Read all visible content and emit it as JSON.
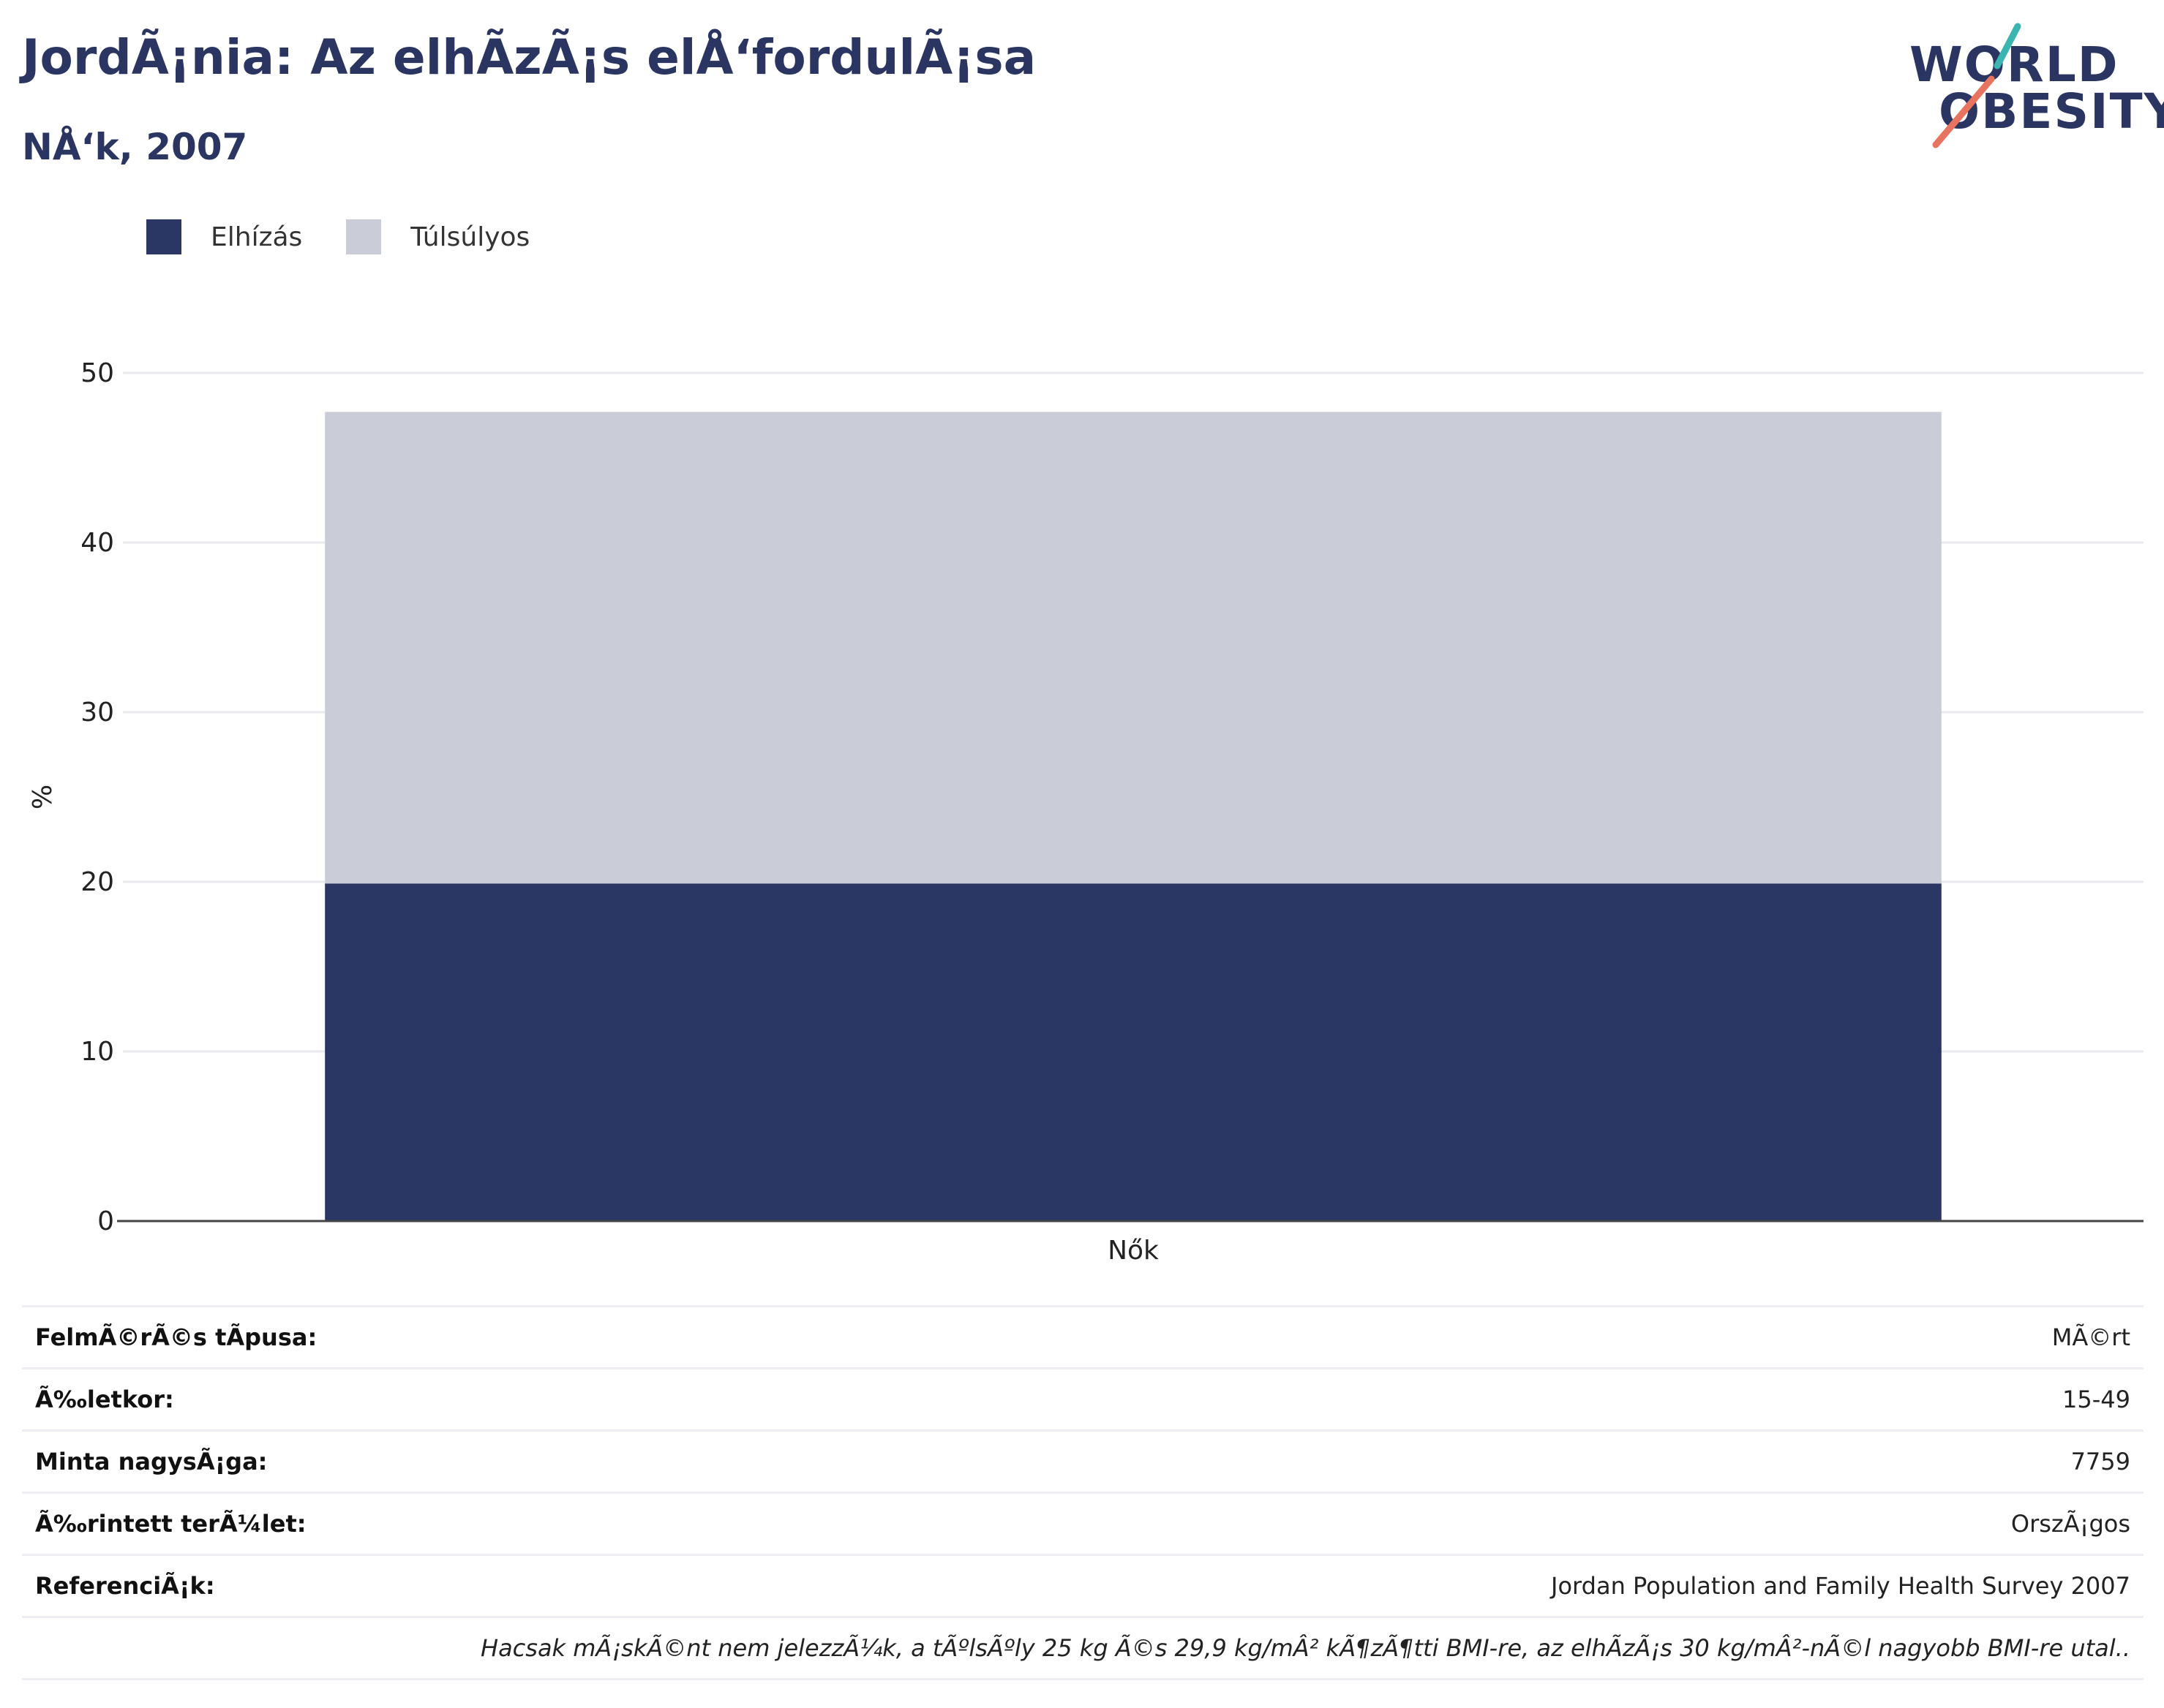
{
  "header": {
    "title": "JordÃ¡nia: Az elhÃ­zÃ¡s elÅ‘fordulÃ¡sa",
    "subtitle": "NÅ‘k, 2007"
  },
  "logo": {
    "line1": "WORLD",
    "line2": "OBESITY"
  },
  "colors": {
    "obesity": "#2a3663",
    "overweight": "#cacdd8",
    "title": "#2a3561",
    "logo_teal": "#3ab5b0",
    "logo_coral": "#e8735f"
  },
  "chart_data": {
    "type": "bar",
    "stacked": true,
    "categories": [
      "Nők"
    ],
    "series": [
      {
        "name": "Elhízás",
        "values": [
          19.9
        ]
      },
      {
        "name": "Túlsúlyos",
        "values": [
          27.8
        ]
      }
    ],
    "ylabel": "%",
    "ylim": [
      0,
      50
    ],
    "yticks": [
      0,
      10,
      20,
      30,
      40,
      50
    ],
    "grid": true,
    "legend_position": "top-left"
  },
  "info": {
    "rows": [
      {
        "label": "FelmÃ©rÃ©s tÃ­pusa:",
        "value": "MÃ©rt"
      },
      {
        "label": "Ã‰letkor:",
        "value": "15-49"
      },
      {
        "label": "Minta nagysÃ¡ga:",
        "value": "7759"
      },
      {
        "label": "Ã‰rintett terÃ¼let:",
        "value": "OrszÃ¡gos"
      },
      {
        "label": "ReferenciÃ¡k:",
        "value": "Jordan Population and Family Health Survey 2007"
      }
    ],
    "note": "Hacsak mÃ¡skÃ©nt nem jelezzÃ¼k, a tÃºlsÃºly 25 kg Ã©s 29,9 kg/mÂ² kÃ¶zÃ¶tti BMI-re, az elhÃ­zÃ¡s 30 kg/mÂ²-nÃ©l nagyobb BMI-re utal.."
  }
}
